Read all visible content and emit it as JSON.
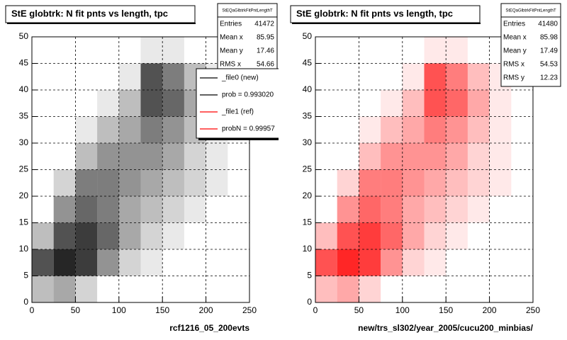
{
  "chart_data": [
    {
      "type": "heatmap",
      "title": "StE globtrk: N fit pnts vs length, tpc",
      "xlabel": "rcf1216_05_200evts",
      "color": "#000000",
      "xlim": [
        0,
        250
      ],
      "ylim": [
        0,
        50
      ],
      "xticks": [
        0,
        50,
        100,
        150,
        200,
        250
      ],
      "yticks": [
        0,
        5,
        10,
        15,
        20,
        25,
        30,
        35,
        40,
        45,
        50
      ],
      "grid": true,
      "xbins": [
        0,
        25,
        50,
        75,
        100,
        125,
        150,
        175,
        200,
        225,
        250
      ],
      "ybins": [
        0,
        5,
        10,
        15,
        20,
        25,
        30,
        35,
        40,
        45,
        50
      ],
      "values": [
        [
          3,
          4,
          2,
          0,
          0,
          0,
          0,
          0,
          0,
          0
        ],
        [
          8,
          10,
          9,
          5,
          2,
          1,
          0,
          0,
          0,
          0
        ],
        [
          3,
          8,
          9,
          7,
          4,
          2,
          1,
          0,
          0,
          0
        ],
        [
          0,
          5,
          7,
          6,
          4,
          3,
          2,
          1,
          0,
          0
        ],
        [
          0,
          2,
          6,
          6,
          5,
          4,
          3,
          2,
          1,
          0
        ],
        [
          0,
          0,
          3,
          5,
          5,
          5,
          4,
          2,
          1,
          0
        ],
        [
          0,
          0,
          1,
          3,
          4,
          6,
          5,
          3,
          1,
          0
        ],
        [
          0,
          0,
          0,
          1,
          3,
          8,
          7,
          4,
          1,
          0
        ],
        [
          0,
          0,
          0,
          0,
          1,
          8,
          6,
          3,
          1,
          0
        ],
        [
          0,
          0,
          0,
          0,
          0,
          1,
          1,
          0,
          0,
          0
        ]
      ],
      "stats": {
        "name": "StEQaGlbtrkFitPntLengthT",
        "rows": [
          {
            "label": "Entries",
            "value": 41472
          },
          {
            "label": "Mean x",
            "value": 85.95
          },
          {
            "label": "Mean y",
            "value": 17.46
          },
          {
            "label": "RMS x",
            "value": 54.66
          }
        ]
      },
      "legend": [
        {
          "label": "_file0 (new)",
          "color": "#000000"
        },
        {
          "label": "prob = 0.993020",
          "color": "#000000"
        },
        {
          "label": "_file1 (ref)",
          "color": "#ff0000"
        },
        {
          "label": "probN = 0.99957",
          "color": "#ff0000"
        }
      ]
    },
    {
      "type": "heatmap",
      "title": "StE globtrk: N fit pnts vs length, tpc",
      "xlabel": "new/trs_sl302/year_2005/cucu200_minbias/",
      "color": "#ff0000",
      "xlim": [
        0,
        250
      ],
      "ylim": [
        0,
        50
      ],
      "xticks": [
        0,
        50,
        100,
        150,
        200,
        250
      ],
      "yticks": [
        0,
        5,
        10,
        15,
        20,
        25,
        30,
        35,
        40,
        45,
        50
      ],
      "grid": true,
      "xbins": [
        0,
        25,
        50,
        75,
        100,
        125,
        150,
        175,
        200,
        225,
        250
      ],
      "ybins": [
        0,
        5,
        10,
        15,
        20,
        25,
        30,
        35,
        40,
        45,
        50
      ],
      "values": [
        [
          3,
          4,
          2,
          0,
          0,
          0,
          0,
          0,
          0,
          0
        ],
        [
          8,
          10,
          9,
          5,
          2,
          1,
          0,
          0,
          0,
          0
        ],
        [
          3,
          8,
          9,
          7,
          4,
          2,
          1,
          0,
          0,
          0
        ],
        [
          0,
          5,
          7,
          6,
          4,
          3,
          2,
          1,
          0,
          0
        ],
        [
          0,
          2,
          6,
          6,
          5,
          4,
          3,
          2,
          1,
          0
        ],
        [
          0,
          0,
          3,
          5,
          5,
          5,
          4,
          2,
          1,
          0
        ],
        [
          0,
          0,
          1,
          3,
          4,
          6,
          5,
          3,
          1,
          0
        ],
        [
          0,
          0,
          0,
          1,
          3,
          8,
          7,
          4,
          1,
          0
        ],
        [
          0,
          0,
          0,
          0,
          1,
          8,
          6,
          3,
          1,
          0
        ],
        [
          0,
          0,
          0,
          0,
          0,
          1,
          1,
          0,
          0,
          0
        ]
      ],
      "stats": {
        "name": "StEQaGlbtrkFitPntLengthT",
        "rows": [
          {
            "label": "Entries",
            "value": 41480
          },
          {
            "label": "Mean x",
            "value": 85.98
          },
          {
            "label": "Mean y",
            "value": 17.49
          },
          {
            "label": "RMS x",
            "value": 54.53
          },
          {
            "label": "RMS y",
            "value": 12.23
          }
        ]
      }
    }
  ]
}
